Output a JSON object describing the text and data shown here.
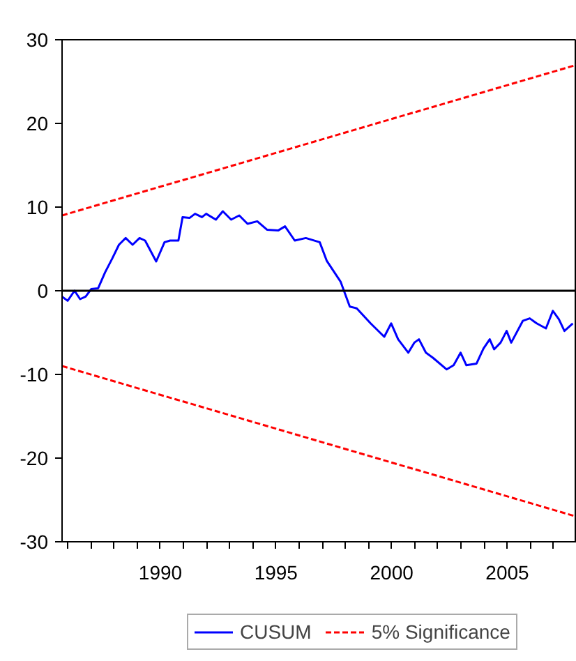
{
  "chart_data": {
    "type": "line",
    "xlim": [
      1985.75,
      2008
    ],
    "ylim": [
      -30,
      30
    ],
    "xticks": [
      {
        "value": 1986,
        "label": null
      },
      {
        "value": 1987,
        "label": null
      },
      {
        "value": 1988,
        "label": null
      },
      {
        "value": 1989,
        "label": null
      },
      1990,
      {
        "value": 1991,
        "label": null
      },
      {
        "value": 1992,
        "label": null
      },
      {
        "value": 1993,
        "label": null
      },
      {
        "value": 1994,
        "label": null
      },
      1995,
      {
        "value": 1996,
        "label": null
      },
      {
        "value": 1997,
        "label": null
      },
      {
        "value": 1998,
        "label": null
      },
      {
        "value": 1999,
        "label": null
      },
      2000,
      {
        "value": 2001,
        "label": null
      },
      {
        "value": 2002,
        "label": null
      },
      {
        "value": 2003,
        "label": null
      },
      {
        "value": 2004,
        "label": null
      },
      2005,
      {
        "value": 2006,
        "label": null
      },
      {
        "value": 2007,
        "label": null
      }
    ],
    "yticks": [
      -30,
      -20,
      -10,
      0,
      10,
      20,
      30
    ],
    "grid": false,
    "legend": "bottom",
    "ref_lines": [
      {
        "axis": "y",
        "value": 0,
        "color": "#000000"
      }
    ],
    "series": [
      {
        "name": "CUSUM",
        "color": "#0000ff",
        "line_style": "solid",
        "x": [
          1985.75,
          1985.99,
          1986.29,
          1986.53,
          1986.77,
          1987.01,
          1987.31,
          1987.61,
          1987.91,
          1988.21,
          1988.5,
          1988.8,
          1989.1,
          1989.34,
          1989.82,
          1990.18,
          1990.42,
          1990.78,
          1990.96,
          1991.26,
          1991.5,
          1991.8,
          1991.98,
          1992.4,
          1992.7,
          1993.06,
          1993.41,
          1993.77,
          1994.19,
          1994.61,
          1995.09,
          1995.39,
          1995.81,
          1996.29,
          1996.89,
          1997.19,
          1997.79,
          1998.19,
          1998.49,
          1999.09,
          1999.68,
          1999.98,
          2000.28,
          2000.72,
          2000.98,
          2001.18,
          2001.48,
          2001.78,
          2002.38,
          2002.68,
          2002.98,
          2003.23,
          2003.67,
          2003.97,
          2004.24,
          2004.43,
          2004.71,
          2004.97,
          2005.17,
          2005.67,
          2005.97,
          2006.27,
          2006.67,
          2006.97,
          2007.23,
          2007.47,
          2007.83
        ],
        "values": [
          -0.7,
          -1.2,
          0,
          -1,
          -0.7,
          0.2,
          0.3,
          2.2,
          3.8,
          5.5,
          6.3,
          5.5,
          6.3,
          6,
          3.5,
          5.8,
          6,
          6,
          8.8,
          8.7,
          9.2,
          8.8,
          9.2,
          8.5,
          9.5,
          8.5,
          9,
          8,
          8.3,
          7.3,
          7.2,
          7.7,
          6,
          6.3,
          5.8,
          3.6,
          1.1,
          -1.9,
          -2.1,
          -3.9,
          -5.5,
          -3.9,
          -5.8,
          -7.4,
          -6.2,
          -5.8,
          -7.4,
          -8,
          -9.4,
          -8.9,
          -7.4,
          -8.9,
          -8.7,
          -6.9,
          -5.8,
          -7,
          -6.2,
          -4.8,
          -6.2,
          -3.6,
          -3.3,
          -3.9,
          -4.5,
          -2.4,
          -3.4,
          -4.8,
          -3.9
        ]
      },
      {
        "name": "5% Significance",
        "color": "#ff0000",
        "line_style": "dashed",
        "x": [
          1985.75,
          2008
        ],
        "values": [
          9,
          27
        ]
      },
      {
        "color": "#ff0000",
        "line_style": "dashed",
        "x": [
          1985.75,
          2008
        ],
        "values": [
          -9,
          -27
        ]
      }
    ]
  }
}
